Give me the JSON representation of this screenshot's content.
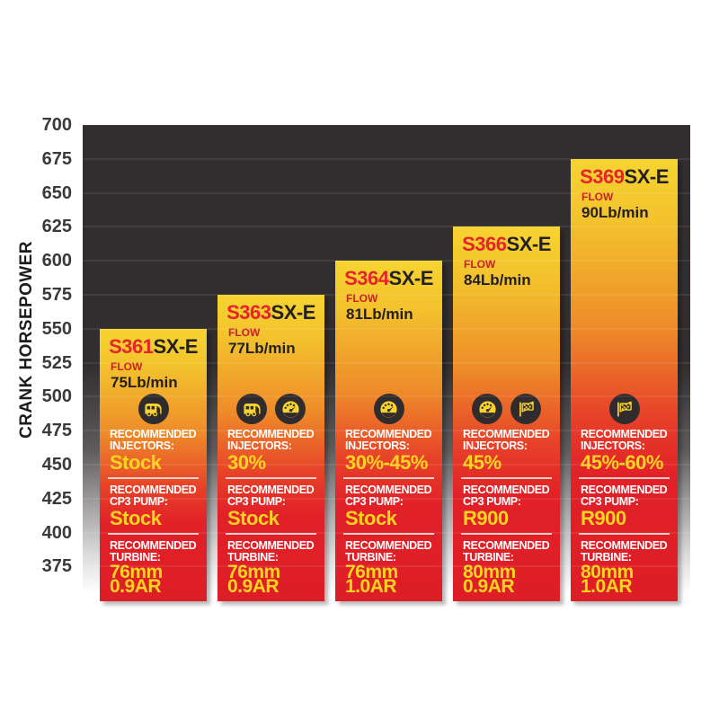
{
  "chart_data": {
    "type": "bar",
    "title": "",
    "xlabel": "",
    "ylabel": "CRANK HORSEPOWER",
    "ylim": [
      375,
      700
    ],
    "ytick_interval": 25,
    "grid": "horizontal",
    "legend": "none",
    "categories": [
      "S361SX-E",
      "S363SX-E",
      "S364SX-E",
      "S366SX-E",
      "S369SX-E"
    ],
    "values": [
      550,
      575,
      600,
      625,
      675
    ],
    "bars": [
      {
        "model": "S361",
        "series": "SX-E",
        "flow": "75Lb/min",
        "icons": [
          "camper"
        ],
        "injectors": "Stock",
        "cp3_pump": "Stock",
        "turbine_size": "76mm",
        "turbine_ar": "0.9AR"
      },
      {
        "model": "S363",
        "series": "SX-E",
        "flow": "77Lb/min",
        "icons": [
          "camper",
          "gauge"
        ],
        "injectors": "30%",
        "cp3_pump": "Stock",
        "turbine_size": "76mm",
        "turbine_ar": "0.9AR"
      },
      {
        "model": "S364",
        "series": "SX-E",
        "flow": "81Lb/min",
        "icons": [
          "gauge"
        ],
        "injectors": "30%-45%",
        "cp3_pump": "Stock",
        "turbine_size": "76mm",
        "turbine_ar": "1.0AR"
      },
      {
        "model": "S366",
        "series": "SX-E",
        "flow": "84Lb/min",
        "icons": [
          "gauge",
          "flag"
        ],
        "injectors": "45%",
        "cp3_pump": "R900",
        "turbine_size": "80mm",
        "turbine_ar": "0.9AR"
      },
      {
        "model": "S369",
        "series": "SX-E",
        "flow": "90Lb/min",
        "icons": [
          "flag"
        ],
        "injectors": "45%-60%",
        "cp3_pump": "R900",
        "turbine_size": "80mm",
        "turbine_ar": "1.0AR"
      }
    ]
  },
  "axis": {
    "title": "CRANK HORSEPOWER",
    "ticks": [
      "700",
      "675",
      "650",
      "625",
      "600",
      "575",
      "550",
      "525",
      "500",
      "475",
      "450",
      "425",
      "400",
      "375"
    ]
  },
  "labels": {
    "flow": "FLOW",
    "recommended": "RECOMMENDED",
    "injectors": "INJECTORS:",
    "cp3_pump": "CP3 PUMP:",
    "turbine": "TURBINE:"
  },
  "colors": {
    "plot_background": "#322e30",
    "bar_gradient_top": "#f6d430",
    "bar_gradient_bottom": "#de1e26",
    "model_red": "#e5242b",
    "value_yellow": "#ffd41e",
    "label_white": "#ffffff",
    "icon_circle": "#302c2e"
  }
}
